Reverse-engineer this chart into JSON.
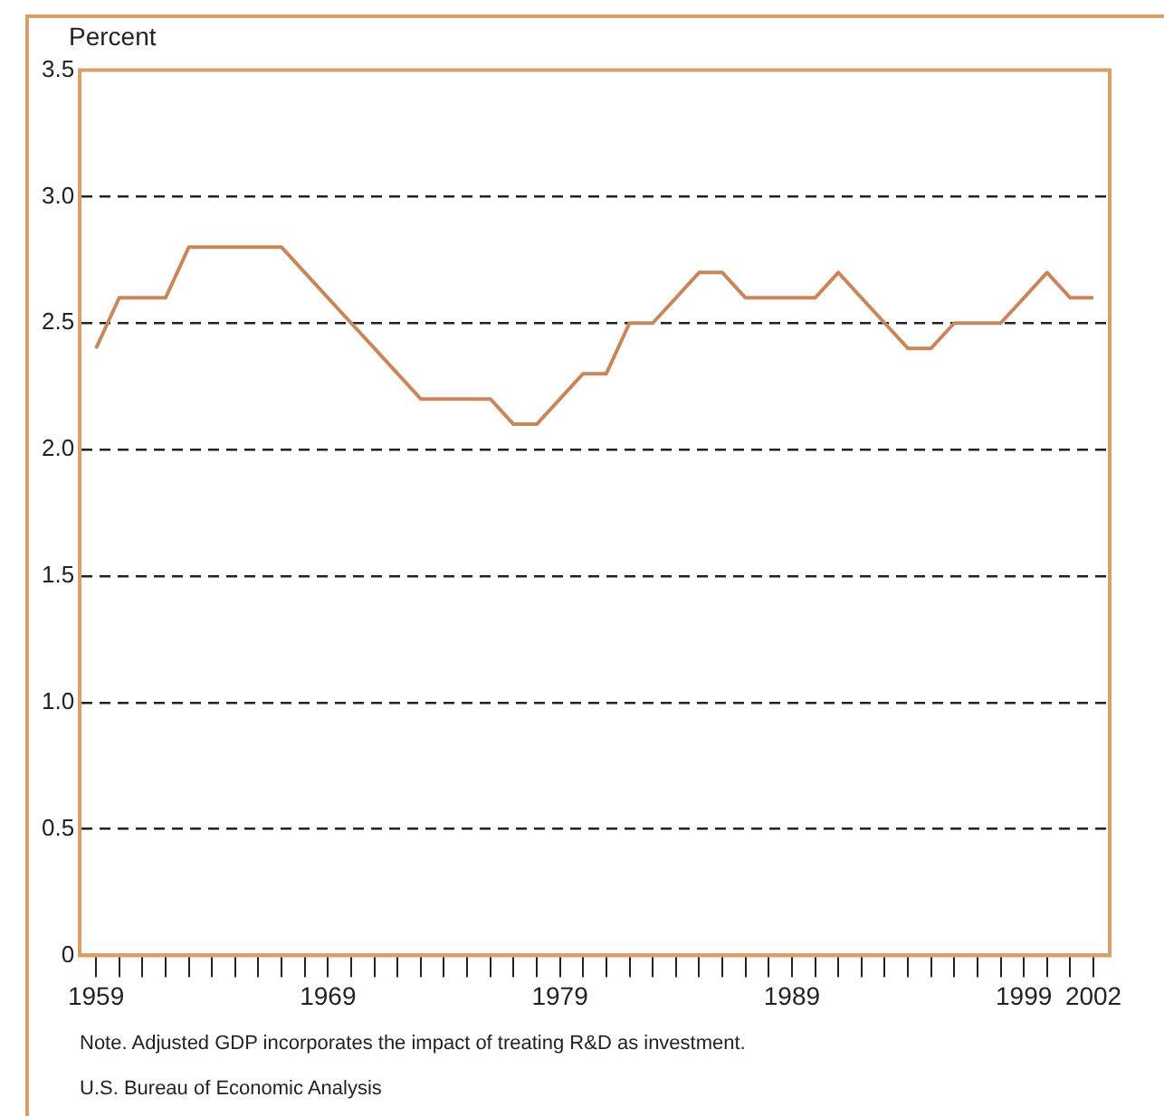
{
  "chart_data": {
    "type": "line",
    "ylabel": "Percent",
    "x": [
      1959,
      1960,
      1961,
      1962,
      1963,
      1964,
      1965,
      1966,
      1967,
      1968,
      1969,
      1970,
      1971,
      1972,
      1973,
      1974,
      1975,
      1976,
      1977,
      1978,
      1979,
      1980,
      1981,
      1982,
      1983,
      1984,
      1985,
      1986,
      1987,
      1988,
      1989,
      1990,
      1991,
      1992,
      1993,
      1994,
      1995,
      1996,
      1997,
      1998,
      1999,
      2000,
      2001,
      2002
    ],
    "series": [
      {
        "color": "#c8875a",
        "values": [
          2.4,
          2.6,
          2.6,
          2.6,
          2.8,
          2.8,
          2.8,
          2.8,
          2.8,
          2.7,
          2.6,
          2.5,
          2.4,
          2.3,
          2.2,
          2.2,
          2.2,
          2.2,
          2.1,
          2.1,
          2.2,
          2.3,
          2.3,
          2.5,
          2.5,
          2.6,
          2.7,
          2.7,
          2.6,
          2.6,
          2.6,
          2.6,
          2.7,
          2.6,
          2.5,
          2.4,
          2.4,
          2.5,
          2.5,
          2.5,
          2.6,
          2.7,
          2.6,
          2.6
        ]
      }
    ],
    "xlim": [
      1958.3,
      2002.7
    ],
    "xticks": [
      1959,
      {
        "value": 1960,
        "label": null
      },
      {
        "value": 1961,
        "label": null
      },
      {
        "value": 1962,
        "label": null
      },
      {
        "value": 1963,
        "label": null
      },
      {
        "value": 1964,
        "label": null
      },
      {
        "value": 1965,
        "label": null
      },
      {
        "value": 1966,
        "label": null
      },
      {
        "value": 1967,
        "label": null
      },
      {
        "value": 1968,
        "label": null
      },
      1969,
      {
        "value": 1970,
        "label": null
      },
      {
        "value": 1971,
        "label": null
      },
      {
        "value": 1972,
        "label": null
      },
      {
        "value": 1973,
        "label": null
      },
      {
        "value": 1974,
        "label": null
      },
      {
        "value": 1975,
        "label": null
      },
      {
        "value": 1976,
        "label": null
      },
      {
        "value": 1977,
        "label": null
      },
      {
        "value": 1978,
        "label": null
      },
      1979,
      {
        "value": 1980,
        "label": null
      },
      {
        "value": 1981,
        "label": null
      },
      {
        "value": 1982,
        "label": null
      },
      {
        "value": 1983,
        "label": null
      },
      {
        "value": 1984,
        "label": null
      },
      {
        "value": 1985,
        "label": null
      },
      {
        "value": 1986,
        "label": null
      },
      {
        "value": 1987,
        "label": null
      },
      {
        "value": 1988,
        "label": null
      },
      1989,
      {
        "value": 1990,
        "label": null
      },
      {
        "value": 1991,
        "label": null
      },
      {
        "value": 1992,
        "label": null
      },
      {
        "value": 1993,
        "label": null
      },
      {
        "value": 1994,
        "label": null
      },
      {
        "value": 1995,
        "label": null
      },
      {
        "value": 1996,
        "label": null
      },
      {
        "value": 1997,
        "label": null
      },
      {
        "value": 1998,
        "label": null
      },
      1999,
      {
        "value": 2000,
        "label": null
      },
      {
        "value": 2001,
        "label": null
      },
      2002
    ],
    "ylim": [
      0,
      3.5
    ],
    "yticks": [
      0,
      {
        "value": 0.5,
        "label": "0.5"
      },
      {
        "value": 1,
        "label": "1.0"
      },
      {
        "value": 1.5,
        "label": "1.5"
      },
      {
        "value": 2,
        "label": "2.0"
      },
      {
        "value": 2.5,
        "label": "2.5"
      },
      {
        "value": 3,
        "label": "3.0"
      },
      {
        "value": 3.5,
        "label": "3.5"
      }
    ],
    "grid": "y",
    "legend": false,
    "marker": "none",
    "line_style": "solid",
    "annotations": [
      "Note. Adjusted GDP incorporates the impact of treating R&D as investment.",
      "U.S. Bureau of Economic Analysis"
    ]
  }
}
